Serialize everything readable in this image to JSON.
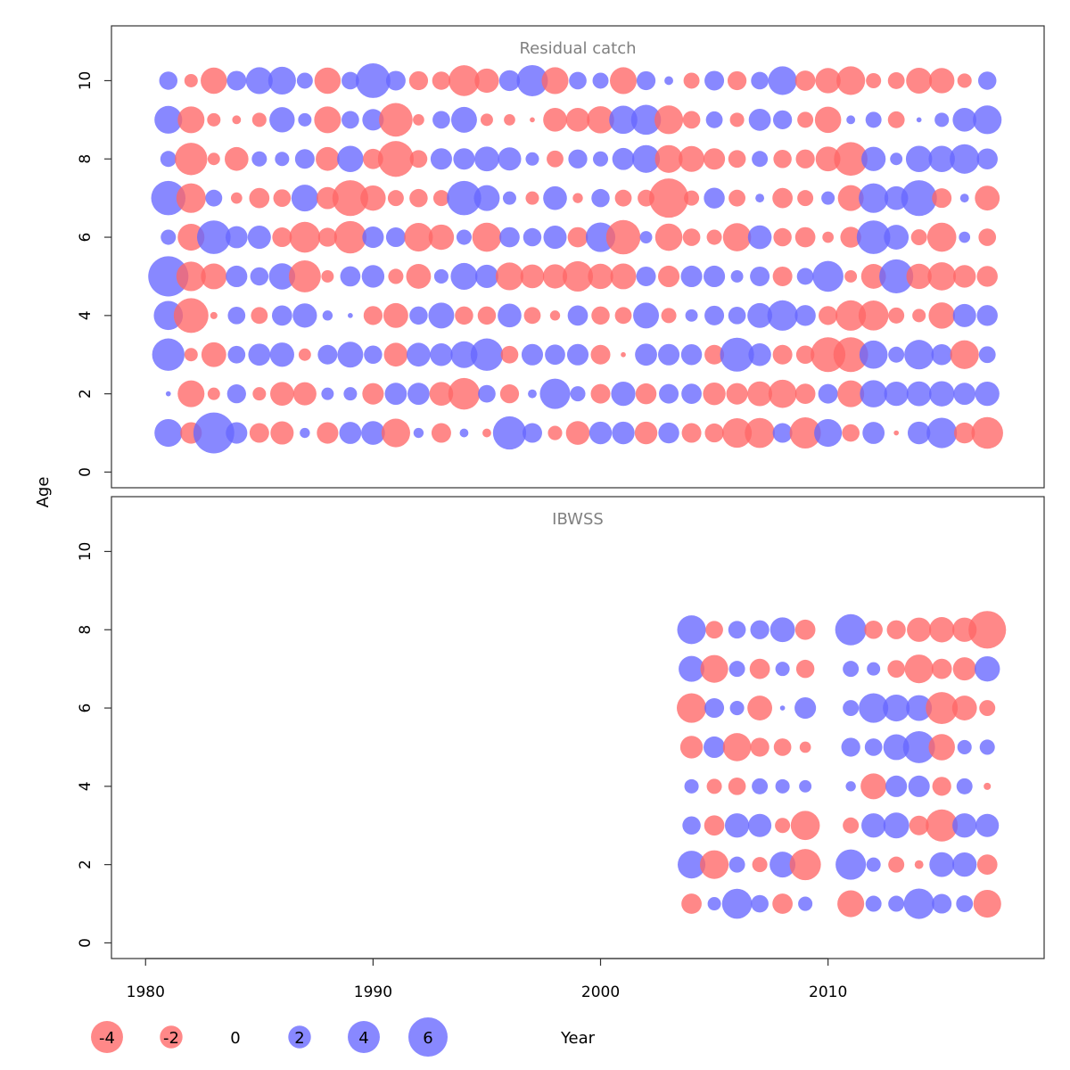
{
  "chart_data": {
    "type": "scatter",
    "subtype": "bubble",
    "ylabel": "Age",
    "xlabel": "Year",
    "x_ticks": [
      1980,
      1990,
      2000,
      2010
    ],
    "y_ticks": [
      0,
      2,
      4,
      6,
      8,
      10
    ],
    "xlim": [
      1978.5,
      2019.5
    ],
    "ylim": [
      -0.4,
      11.4
    ],
    "grid": false,
    "colors": {
      "positive": "#6666ff",
      "negative": "#ff6666"
    },
    "legend": {
      "placement": "bottom-left",
      "entries": [
        {
          "label": "-4",
          "value": -4
        },
        {
          "label": "-2",
          "value": -2
        },
        {
          "label": "0",
          "value": 0
        },
        {
          "label": "2",
          "value": 2
        },
        {
          "label": "4",
          "value": 4
        },
        {
          "label": "6",
          "value": 6
        }
      ]
    },
    "panels": [
      {
        "title": "Residual catch",
        "years": [
          1981,
          1982,
          1983,
          1984,
          1985,
          1986,
          1987,
          1988,
          1989,
          1990,
          1991,
          1992,
          1993,
          1994,
          1995,
          1996,
          1997,
          1998,
          1999,
          2000,
          2001,
          2002,
          2003,
          2004,
          2005,
          2006,
          2007,
          2008,
          2009,
          2010,
          2011,
          2012,
          2013,
          2014,
          2015,
          2016,
          2017
        ],
        "ages": [
          1,
          2,
          3,
          4,
          5,
          6,
          7,
          8,
          9,
          10
        ],
        "residuals": [
          [
            3.0,
            -1.8,
            6.5,
            1.8,
            -1.5,
            -2.1,
            0.4,
            -1.8,
            1.9,
            2.2,
            -3.2,
            0.4,
            -1.5,
            0.3,
            -0.3,
            4.3,
            1.5,
            -0.8,
            -2.2,
            2.0,
            2.0,
            -2.0,
            1.7,
            -1.5,
            -1.4,
            -3.4,
            -3.5,
            1.5,
            -3.8,
            3.0,
            -1.2,
            1.9,
            -0.1,
            2.0,
            3.6,
            -1.7,
            -3.9
          ],
          [
            0.1,
            -2.8,
            -0.6,
            1.4,
            -0.7,
            -2.2,
            -2.1,
            0.6,
            0.7,
            -1.8,
            1.9,
            1.9,
            -2.2,
            -3.9,
            1.2,
            -1.4,
            0.3,
            3.6,
            0.9,
            -1.5,
            2.3,
            -1.7,
            1.5,
            1.6,
            -2.0,
            -1.8,
            -2.4,
            -3.1,
            -1.6,
            1.5,
            -2.8,
            2.9,
            2.3,
            2.4,
            2.5,
            1.9,
            2.3
          ],
          [
            4.1,
            -0.7,
            -2.4,
            1.2,
            1.9,
            2.3,
            -0.6,
            1.5,
            2.6,
            1.3,
            -2.2,
            2.2,
            2.0,
            2.8,
            4.1,
            -1.2,
            1.8,
            1.6,
            1.8,
            -1.5,
            -0.1,
            1.9,
            1.8,
            1.7,
            -1.5,
            4.5,
            2.0,
            -1.5,
            -1.3,
            -4.7,
            -4.7,
            3.1,
            1.0,
            3.4,
            1.7,
            -3.2,
            1.1
          ],
          [
            3.3,
            -4.7,
            -0.2,
            1.2,
            -1.1,
            1.6,
            2.3,
            0.4,
            0.1,
            -1.4,
            -2.4,
            1.3,
            2.6,
            -1.3,
            -1.3,
            2.2,
            -1.1,
            -0.4,
            1.6,
            -1.3,
            -1.1,
            2.6,
            -0.9,
            0.6,
            1.5,
            1.2,
            2.4,
            3.6,
            1.7,
            -1.4,
            -3.6,
            -3.5,
            -1.0,
            -0.7,
            -2.7,
            2.1,
            1.7
          ],
          [
            6.3,
            -3.4,
            -2.6,
            1.8,
            1.3,
            2.7,
            -4.0,
            -0.6,
            1.6,
            2.0,
            -0.9,
            -2.4,
            0.8,
            2.8,
            2.1,
            -3.0,
            -2.2,
            -2.3,
            -3.6,
            -2.5,
            -2.6,
            1.5,
            -1.8,
            1.8,
            1.8,
            0.6,
            1.5,
            -1.5,
            1.1,
            3.7,
            -0.6,
            -2.4,
            4.5,
            -2.5,
            -3.1,
            -2.0,
            -1.7
          ],
          [
            0.9,
            -2.8,
            4.4,
            1.9,
            2.1,
            -1.5,
            -3.7,
            -1.4,
            -4.1,
            1.8,
            1.5,
            -3.2,
            -2.5,
            0.9,
            -3.3,
            1.6,
            1.3,
            2.1,
            -1.6,
            3.4,
            -4.6,
            0.6,
            -2.9,
            -1.2,
            -0.9,
            -3.1,
            2.2,
            -1.3,
            -1.6,
            -0.5,
            -1.7,
            4.4,
            2.4,
            -1.0,
            -3.3,
            0.5,
            -1.2
          ],
          [
            4.6,
            -3.4,
            1.1,
            -0.5,
            -1.6,
            -1.2,
            2.8,
            -1.9,
            -5.0,
            -2.5,
            -1.0,
            -1.3,
            -1.0,
            4.6,
            2.6,
            0.7,
            -0.7,
            2.2,
            -0.4,
            1.3,
            -1.1,
            -1.1,
            -6.0,
            -0.9,
            1.7,
            -1.1,
            0.3,
            -1.6,
            -1.0,
            0.7,
            -2.6,
            3.4,
            2.2,
            5.0,
            -1.5,
            0.3,
            -2.4
          ],
          [
            1.0,
            -4.1,
            -0.6,
            -2.2,
            0.9,
            0.8,
            1.5,
            -2.2,
            2.7,
            -1.6,
            -5.0,
            -1.2,
            1.8,
            1.8,
            2.4,
            2.1,
            0.7,
            -1.1,
            1.4,
            0.9,
            1.9,
            3.0,
            -3.0,
            -2.6,
            -1.8,
            -1.2,
            1.0,
            -1.3,
            -1.4,
            -2.4,
            -4.4,
            2.3,
            0.6,
            2.7,
            2.7,
            3.4,
            1.7
          ],
          [
            3.0,
            -2.8,
            -0.7,
            -0.3,
            -0.8,
            2.5,
            0.7,
            -2.8,
            1.2,
            1.8,
            -4.4,
            -0.5,
            1.2,
            2.6,
            -0.6,
            -0.5,
            -0.1,
            -2.2,
            -2.2,
            -2.9,
            3.1,
            3.5,
            -3.2,
            -1.2,
            1.1,
            -0.8,
            1.9,
            1.4,
            -1.0,
            -2.7,
            0.3,
            1.0,
            -1.1,
            0.1,
            0.8,
            2.2,
            3.2
          ],
          [
            1.3,
            -0.7,
            -2.7,
            1.5,
            2.8,
            3.0,
            1.0,
            -2.7,
            1.2,
            4.7,
            1.5,
            -1.4,
            -1.3,
            -3.7,
            -2.3,
            1.7,
            3.8,
            -2.8,
            1.2,
            1.0,
            -2.8,
            1.4,
            0.3,
            -1.0,
            1.5,
            -1.4,
            1.2,
            3.2,
            -1.6,
            -2.5,
            -3.2,
            -0.9,
            -1.1,
            -2.6,
            -2.5,
            -0.8,
            1.3
          ]
        ]
      },
      {
        "title": "IBWSS",
        "years": [
          2004,
          2005,
          2006,
          2007,
          2008,
          2009,
          2011,
          2012,
          2013,
          2014,
          2015,
          2016,
          2017
        ],
        "ages": [
          1,
          2,
          3,
          4,
          5,
          6,
          7,
          8
        ],
        "residuals": [
          [
            -1.6,
            0.7,
            3.5,
            1.2,
            -1.6,
            0.8,
            -2.8,
            1.0,
            1.0,
            3.6,
            1.5,
            1.1,
            -3.0
          ],
          [
            3.0,
            -3.2,
            1.0,
            -0.9,
            2.6,
            -3.8,
            3.6,
            0.8,
            -1.0,
            -0.3,
            2.4,
            2.3,
            -1.6
          ],
          [
            1.3,
            -1.6,
            2.3,
            2.1,
            -0.9,
            -3.3,
            -1.0,
            2.3,
            2.6,
            -1.5,
            -4.0,
            2.3,
            2.1
          ],
          [
            0.8,
            -0.9,
            -1.2,
            1.0,
            0.8,
            0.6,
            0.4,
            -2.6,
            1.8,
            1.8,
            -1.4,
            1.0,
            -0.2
          ],
          [
            -2.0,
            1.8,
            -3.1,
            -1.4,
            -1.2,
            -0.5,
            1.4,
            1.2,
            2.6,
            4.0,
            -2.7,
            0.8,
            0.9
          ],
          [
            -3.4,
            1.5,
            0.8,
            -2.4,
            0.1,
            1.8,
            1.0,
            3.4,
            2.8,
            2.6,
            -4.0,
            -2.4,
            -1.0
          ],
          [
            2.6,
            -3.0,
            1.0,
            -1.6,
            0.8,
            -1.3,
            1.0,
            0.7,
            -1.2,
            -3.2,
            -1.6,
            -2.1,
            2.5
          ],
          [
            3.2,
            -1.2,
            1.2,
            1.4,
            2.4,
            -1.6,
            3.8,
            -1.3,
            -1.4,
            -2.3,
            -2.5,
            -2.3,
            -5.5
          ]
        ]
      }
    ]
  }
}
